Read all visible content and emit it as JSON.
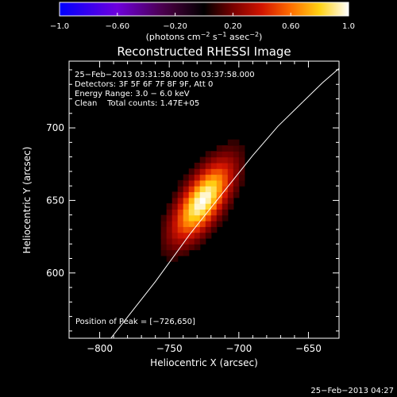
{
  "colorbar": {
    "ticks": [
      {
        "value": -1.0,
        "label": "−1.0"
      },
      {
        "value": -0.6,
        "label": "−0.60"
      },
      {
        "value": -0.2,
        "label": "−0.20"
      },
      {
        "value": 0.2,
        "label": "0.20"
      },
      {
        "value": 0.6,
        "label": "0.60"
      },
      {
        "value": 1.0,
        "label": "1.0"
      }
    ],
    "unit_parts": {
      "p1": "(photons cm",
      "e1": "−2",
      "p2": " s",
      "e2": "−1",
      "p3": " asec",
      "e3": "−2",
      "p4": ")"
    },
    "range": [
      -1.0,
      1.0
    ]
  },
  "chart_data": {
    "type": "heatmap",
    "title": "Reconstructed RHESSI Image",
    "xlabel": "Heliocentric X (arcsec)",
    "ylabel": "Heliocentric Y (arcsec)",
    "xlim": [
      -822,
      -628
    ],
    "ylim": [
      555,
      746
    ],
    "x_ticks": [
      {
        "value": -800,
        "label": "−800"
      },
      {
        "value": -750,
        "label": "−750"
      },
      {
        "value": -700,
        "label": "−700"
      },
      {
        "value": -650,
        "label": "−650"
      }
    ],
    "y_ticks": [
      {
        "value": 600,
        "label": "600"
      },
      {
        "value": 650,
        "label": "650"
      },
      {
        "value": 700,
        "label": "700"
      }
    ],
    "source": {
      "peak": [
        -726,
        650
      ],
      "peak_value": 1.0,
      "sigma_major": 21,
      "sigma_minor": 9,
      "angle_deg": 55,
      "pixel_arcsec": 4
    },
    "limb_points": [
      [
        -792,
        555
      ],
      [
        -760,
        594
      ],
      [
        -735,
        627
      ],
      [
        -710,
        657
      ],
      [
        -690,
        681
      ],
      [
        -672,
        701
      ],
      [
        -655,
        717
      ],
      [
        -640,
        731
      ],
      [
        -628,
        741
      ]
    ],
    "info_lines": [
      "25−Feb−2013 03:31:58.000 to 03:37:58.000",
      "Detectors: 3F 5F 6F 7F 8F 9F, Att 0",
      "Energy Range: 3.0 − 6.0 keV",
      "Clean    Total counts: 1.47E+05"
    ],
    "peak_label": "Position of Peak = [−726,650]",
    "colors": {
      "background": "#000000",
      "frame": "#ffffff",
      "limb": "#ffffff"
    }
  },
  "footer": {
    "timestamp": "25−Feb−2013 04:27"
  }
}
